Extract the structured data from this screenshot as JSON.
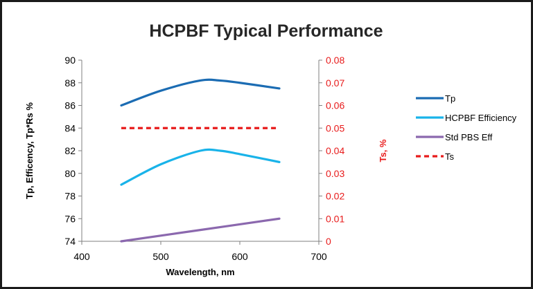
{
  "chart_data": {
    "type": "line",
    "title": "HCPBF Typical Performance",
    "xlabel": "Wavelength, nm",
    "ylabel": "Tp, Efficency, Tp*Rs %",
    "y2label": "Ts, %",
    "xlim": [
      400,
      700
    ],
    "ylim": [
      74,
      90
    ],
    "y2lim": [
      0,
      0.08
    ],
    "x_ticks": [
      "400",
      "500",
      "600",
      "700"
    ],
    "y_ticks": [
      "90",
      "88",
      "86",
      "84",
      "82",
      "80",
      "78",
      "76",
      "74"
    ],
    "y2_ticks": [
      "0.08",
      "0.07",
      "0.06",
      "0.05",
      "0.04",
      "0.03",
      "0.02",
      "0.01",
      "0"
    ],
    "grid": false,
    "legend_position": "right",
    "series": [
      {
        "name": "Tp",
        "axis": "left",
        "color": "#1b6cb3",
        "dash": false,
        "x": [
          450,
          500,
          550,
          575,
          600,
          650
        ],
        "y": [
          86,
          87.3,
          88.2,
          88.2,
          88.0,
          87.5
        ]
      },
      {
        "name": "HCPBF Efficiency",
        "axis": "left",
        "color": "#19b3e9",
        "dash": false,
        "x": [
          450,
          500,
          550,
          575,
          600,
          650
        ],
        "y": [
          79,
          80.8,
          82.0,
          82.0,
          81.7,
          81.0
        ]
      },
      {
        "name": "Std PBS Eff",
        "axis": "left",
        "color": "#8b68ae",
        "dash": false,
        "x": [
          450,
          550,
          650
        ],
        "y": [
          74,
          75,
          76
        ]
      },
      {
        "name": "Ts",
        "axis": "right",
        "color": "#e81b1b",
        "dash": true,
        "x": [
          450,
          550,
          650
        ],
        "y": [
          0.05,
          0.05,
          0.05
        ]
      }
    ]
  }
}
